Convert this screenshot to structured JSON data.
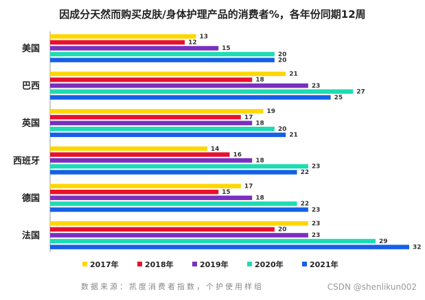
{
  "chart_data": {
    "type": "bar",
    "orientation": "horizontal",
    "title": "因成分天然而购买皮肤/身体护理产品的消费者%，各年份同期12周",
    "categories": [
      "美国",
      "巴西",
      "英国",
      "西班牙",
      "德国",
      "法国"
    ],
    "series": [
      {
        "name": "2017年",
        "color": "#FFD700",
        "values": [
          13,
          21,
          19,
          14,
          17,
          23
        ]
      },
      {
        "name": "2018年",
        "color": "#E8112D",
        "values": [
          12,
          18,
          17,
          16,
          15,
          20
        ]
      },
      {
        "name": "2019年",
        "color": "#7B2FBE",
        "values": [
          15,
          23,
          18,
          18,
          18,
          23
        ]
      },
      {
        "name": "2020年",
        "color": "#1DDCB4",
        "values": [
          20,
          27,
          20,
          23,
          22,
          29
        ]
      },
      {
        "name": "2021年",
        "color": "#1560E6",
        "values": [
          20,
          25,
          21,
          22,
          23,
          32
        ]
      }
    ],
    "xlim": [
      0,
      32
    ],
    "grid": false,
    "legend_position": "bottom",
    "show_value_labels": true
  },
  "source_note": "数据来源：凯度消费者指数，个护使用样组",
  "watermark": "CSDN @shenlikun002"
}
